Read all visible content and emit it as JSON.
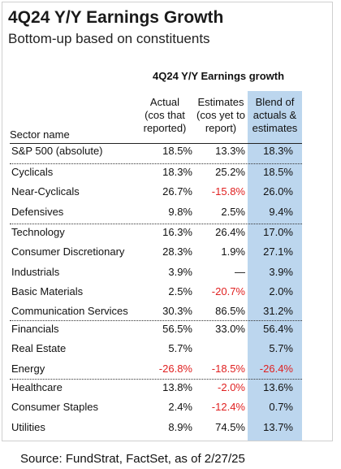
{
  "title": "4Q24 Y/Y Earnings Growth",
  "subtitle": "Bottom-up based on constituents",
  "table_title": "4Q24 Y/Y Earnings growth",
  "headers": {
    "sector": "Sector name",
    "actual": [
      "Actual",
      "(cos that",
      "reported)"
    ],
    "estimates": [
      "Estimates",
      "(cos yet to",
      "report)"
    ],
    "blend": [
      "Blend of",
      "actuals &",
      "estimates"
    ]
  },
  "source": "Source: FundStrat, FactSet, as of 2/27/25",
  "colors": {
    "negative": "#e02020",
    "highlight_band": "#bcd6ee"
  },
  "chart_data": {
    "type": "table",
    "columns": [
      "Sector name",
      "Actual (cos that reported)",
      "Estimates (cos yet to report)",
      "Blend of actuals & estimates"
    ],
    "groups": [
      {
        "rows": [
          {
            "sector": "S&P 500 (absolute)",
            "actual": "18.5%",
            "estimates": "13.3%",
            "blend": "18.3%"
          }
        ]
      },
      {
        "rows": [
          {
            "sector": "Cyclicals",
            "actual": "18.3%",
            "estimates": "25.2%",
            "blend": "18.5%"
          },
          {
            "sector": "Near-Cyclicals",
            "actual": "26.7%",
            "estimates": "-15.8%",
            "blend": "26.0%"
          },
          {
            "sector": "Defensives",
            "actual": "9.8%",
            "estimates": "2.5%",
            "blend": "9.4%"
          }
        ]
      },
      {
        "rows": [
          {
            "sector": "Technology",
            "actual": "16.3%",
            "estimates": "26.4%",
            "blend": "17.0%"
          },
          {
            "sector": "Consumer Discretionary",
            "actual": "28.3%",
            "estimates": "1.9%",
            "blend": "27.1%"
          },
          {
            "sector": "Industrials",
            "actual": "3.9%",
            "estimates": "—",
            "blend": "3.9%"
          },
          {
            "sector": "Basic Materials",
            "actual": "2.5%",
            "estimates": "-20.7%",
            "blend": "2.0%"
          },
          {
            "sector": "Communication Services",
            "actual": "30.3%",
            "estimates": "86.5%",
            "blend": "31.2%"
          }
        ]
      },
      {
        "rows": [
          {
            "sector": "Financials",
            "actual": "56.5%",
            "estimates": "33.0%",
            "blend": "56.4%"
          },
          {
            "sector": "Real Estate",
            "actual": "5.7%",
            "estimates": "",
            "blend": "5.7%"
          },
          {
            "sector": "Energy",
            "actual": "-26.8%",
            "estimates": "-18.5%",
            "blend": "-26.4%"
          }
        ]
      },
      {
        "rows": [
          {
            "sector": "Healthcare",
            "actual": "13.8%",
            "estimates": "-2.0%",
            "blend": "13.6%"
          },
          {
            "sector": "Consumer Staples",
            "actual": "2.4%",
            "estimates": "-12.4%",
            "blend": "0.7%"
          },
          {
            "sector": "Utilities",
            "actual": "8.9%",
            "estimates": "74.5%",
            "blend": "13.7%"
          }
        ]
      }
    ]
  }
}
